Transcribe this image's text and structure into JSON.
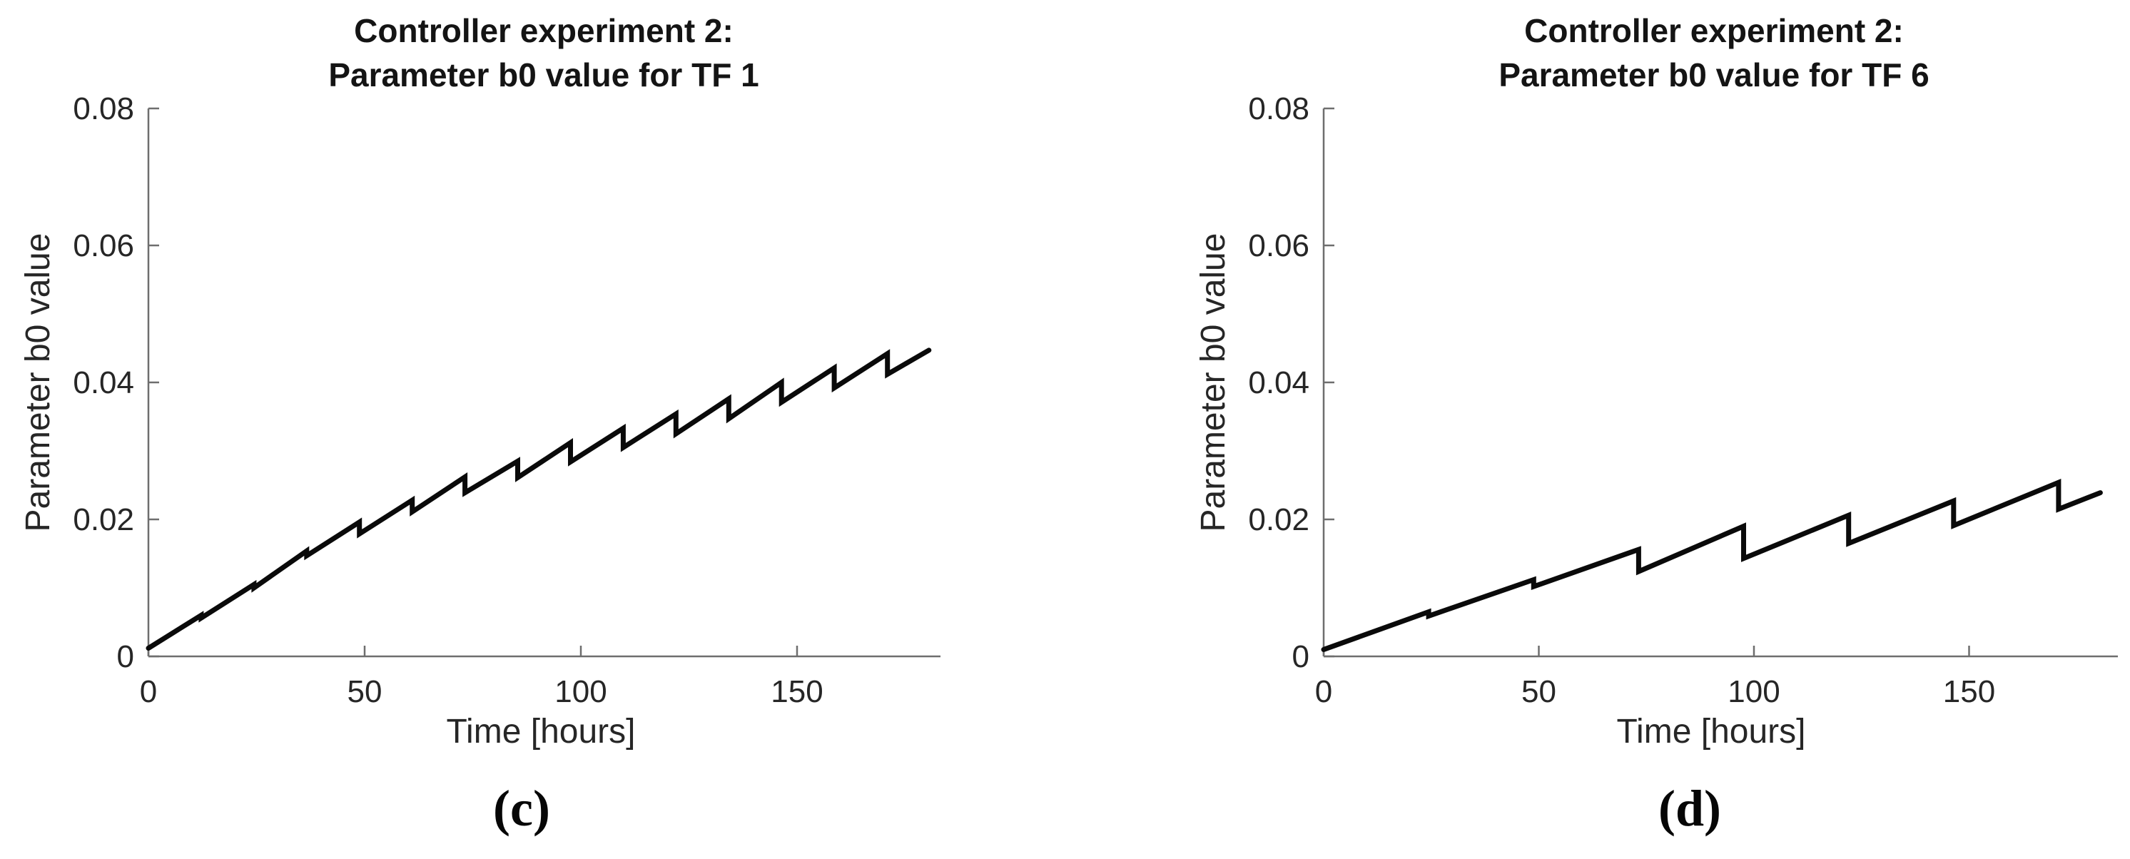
{
  "figure": {
    "background": "#ffffff",
    "text_color": "#262626",
    "axis_color": "#6e6e6e",
    "curve_color": "#0a0a0a"
  },
  "chart_data": [
    {
      "type": "line",
      "panel": "c",
      "title_line1": "Controller experiment 2:",
      "title_line2": "Parameter b0 value for TF 1",
      "xlabel": "Time [hours]",
      "ylabel": "Parameter b0 value",
      "caption": "(c)",
      "xlim": [
        0,
        183
      ],
      "ylim": [
        0,
        0.08
      ],
      "xticks": [
        0,
        50,
        100,
        150
      ],
      "xtick_labels": [
        "0",
        "50",
        "100",
        "150"
      ],
      "yticks": [
        0,
        0.02,
        0.04,
        0.06,
        0.08
      ],
      "ytick_labels": [
        "0",
        "0.02",
        "0.04",
        "0.06",
        "0.08"
      ],
      "grid": false,
      "legend": null,
      "line_color": "#0a0a0a",
      "series": [
        {
          "name": "Parameter b0 value for TF 1",
          "points": [
            [
              0,
              0.0012
            ],
            [
              12.2,
              0.006
            ],
            [
              12.2,
              0.0056
            ],
            [
              24.4,
              0.0105
            ],
            [
              24.4,
              0.01
            ],
            [
              36.6,
              0.0154
            ],
            [
              36.6,
              0.0147
            ],
            [
              48.8,
              0.0196
            ],
            [
              48.8,
              0.0179
            ],
            [
              61.0,
              0.0228
            ],
            [
              61.0,
              0.0211
            ],
            [
              73.2,
              0.0262
            ],
            [
              73.2,
              0.0239
            ],
            [
              85.4,
              0.0285
            ],
            [
              85.4,
              0.0261
            ],
            [
              97.6,
              0.0312
            ],
            [
              97.6,
              0.0284
            ],
            [
              109.8,
              0.0333
            ],
            [
              109.8,
              0.0305
            ],
            [
              122.0,
              0.0354
            ],
            [
              122.0,
              0.0325
            ],
            [
              134.2,
              0.0376
            ],
            [
              134.2,
              0.0347
            ],
            [
              146.4,
              0.04
            ],
            [
              146.4,
              0.0371
            ],
            [
              158.6,
              0.0421
            ],
            [
              158.6,
              0.0392
            ],
            [
              170.9,
              0.0442
            ],
            [
              170.9,
              0.0412
            ],
            [
              180.5,
              0.0447
            ]
          ]
        }
      ]
    },
    {
      "type": "line",
      "panel": "d",
      "title_line1": "Controller experiment 2:",
      "title_line2": "Parameter b0 value for TF 6",
      "xlabel": "Time [hours]",
      "ylabel": "Parameter b0 value",
      "caption": "(d)",
      "xlim": [
        0,
        183
      ],
      "ylim": [
        0,
        0.08
      ],
      "xticks": [
        0,
        50,
        100,
        150
      ],
      "xtick_labels": [
        "0",
        "50",
        "100",
        "150"
      ],
      "yticks": [
        0,
        0.02,
        0.04,
        0.06,
        0.08
      ],
      "ytick_labels": [
        "0",
        "0.02",
        "0.04",
        "0.06",
        "0.08"
      ],
      "grid": false,
      "legend": null,
      "line_color": "#0a0a0a",
      "series": [
        {
          "name": "Parameter b0 value for TF 6",
          "points": [
            [
              0,
              0.001
            ],
            [
              24.4,
              0.0065
            ],
            [
              24.4,
              0.0059
            ],
            [
              48.8,
              0.0112
            ],
            [
              48.8,
              0.0102
            ],
            [
              73.2,
              0.0156
            ],
            [
              73.2,
              0.0124
            ],
            [
              97.6,
              0.019
            ],
            [
              97.6,
              0.0143
            ],
            [
              122.0,
              0.0206
            ],
            [
              122.0,
              0.0165
            ],
            [
              146.4,
              0.0227
            ],
            [
              146.4,
              0.0191
            ],
            [
              170.8,
              0.0254
            ],
            [
              170.8,
              0.0215
            ],
            [
              180.5,
              0.0239
            ]
          ]
        }
      ]
    }
  ]
}
